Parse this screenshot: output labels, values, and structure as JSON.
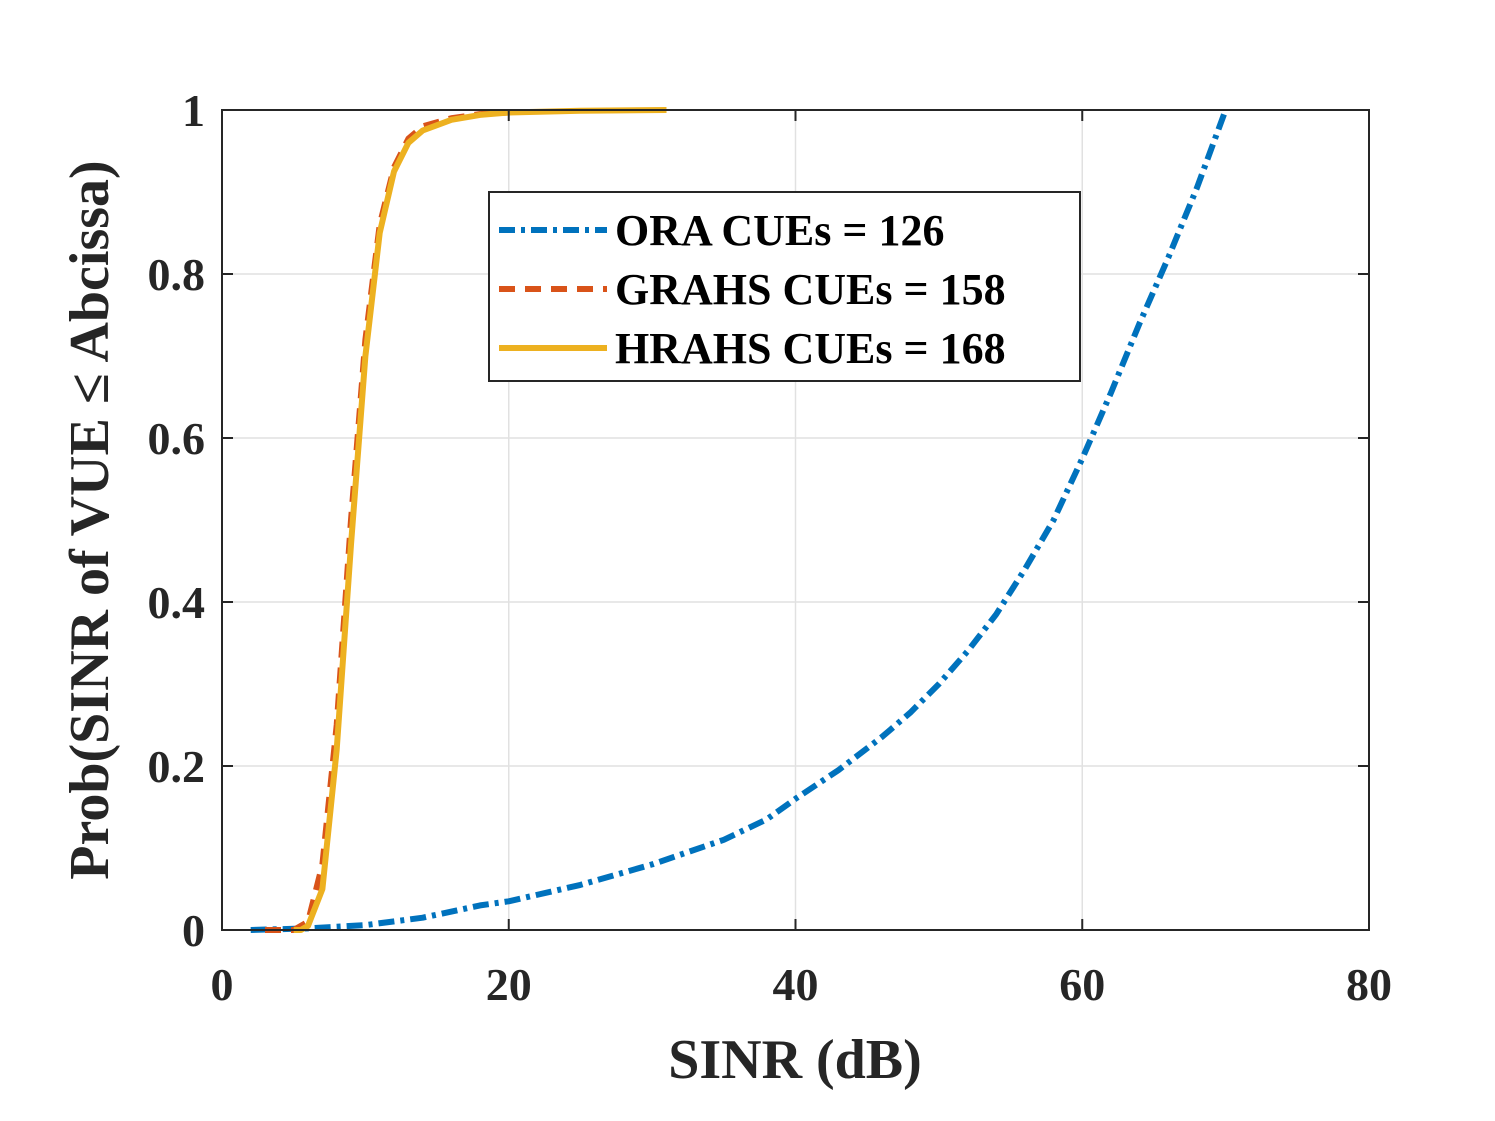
{
  "chart_data": {
    "type": "line",
    "title": "",
    "xlabel": "SINR (dB)",
    "ylabel": "Prob(SINR of VUE ≤ Abcissa)",
    "xlim": [
      0,
      80
    ],
    "ylim": [
      0,
      1
    ],
    "xticks": [
      0,
      20,
      40,
      60,
      80
    ],
    "yticks": [
      0,
      0.2,
      0.4,
      0.6,
      0.8,
      1
    ],
    "xtick_labels": [
      "0",
      "20",
      "40",
      "60",
      "80"
    ],
    "ytick_labels": [
      "0",
      "0.2",
      "0.4",
      "0.6",
      "0.8",
      "1"
    ],
    "grid": true,
    "legend_position": "upper-center",
    "series": [
      {
        "name": "ORA CUEs = 126",
        "color": "#0072BD",
        "style": "dash-dot",
        "x": [
          2,
          6,
          10,
          14,
          18,
          20,
          25,
          30,
          35,
          38,
          40,
          43,
          46,
          48,
          50,
          52,
          54,
          56,
          58,
          60,
          62,
          64,
          66,
          68,
          70
        ],
        "y": [
          0,
          0.002,
          0.006,
          0.015,
          0.03,
          0.035,
          0.055,
          0.08,
          0.11,
          0.135,
          0.16,
          0.195,
          0.235,
          0.265,
          0.3,
          0.34,
          0.385,
          0.44,
          0.5,
          0.575,
          0.655,
          0.74,
          0.82,
          0.905,
          1.0
        ]
      },
      {
        "name": "GRAHS CUEs = 158",
        "color": "#D95319",
        "style": "dashed",
        "x": [
          3,
          5,
          6,
          7,
          8,
          9,
          10,
          11,
          12,
          13,
          14,
          16,
          18,
          20
        ],
        "y": [
          0,
          0,
          0.01,
          0.08,
          0.25,
          0.5,
          0.72,
          0.86,
          0.93,
          0.965,
          0.98,
          0.99,
          0.995,
          0.997
        ]
      },
      {
        "name": "HRAHS CUEs = 168",
        "color": "#EDB120",
        "style": "solid",
        "x": [
          5,
          5.5,
          6,
          7,
          8,
          9,
          10,
          11,
          12,
          13,
          14,
          16,
          18,
          20,
          25,
          31
        ],
        "y": [
          0,
          0,
          0.005,
          0.05,
          0.22,
          0.47,
          0.7,
          0.85,
          0.925,
          0.96,
          0.975,
          0.988,
          0.994,
          0.997,
          0.999,
          1.0
        ]
      }
    ]
  }
}
